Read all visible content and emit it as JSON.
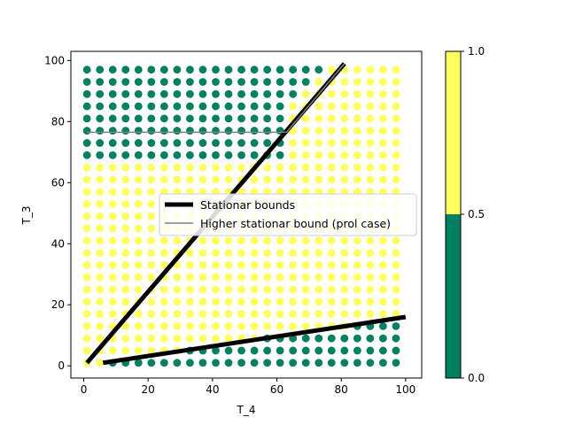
{
  "chart_data": {
    "type": "scatter",
    "title": "",
    "xlabel": "T_4",
    "ylabel": "T_3",
    "xlim": [
      -4,
      105
    ],
    "ylim": [
      -4,
      103
    ],
    "x_ticks": [
      0,
      20,
      40,
      60,
      80,
      100
    ],
    "y_ticks": [
      0,
      20,
      40,
      60,
      80,
      100
    ],
    "x_tick_labels": [
      "0",
      "20",
      "40",
      "60",
      "80",
      "100"
    ],
    "y_tick_labels": [
      "0",
      "20",
      "40",
      "60",
      "80",
      "100"
    ],
    "grid": false,
    "grid_points": {
      "x_start": 1,
      "x_step": 4,
      "x_count": 25,
      "y_start": 1,
      "y_step": 4,
      "y_count": 25
    },
    "point_classes": {
      "class_0_color": "#008060",
      "class_1_color": "#ffff5f",
      "rule": "class 0 = green region at top-left (above the higher stationar bound) and bottom-right (below the lower stationar bound); class 1 = yellow elsewhere"
    },
    "lines": [
      {
        "name": "Stationar bounds",
        "color": "#000000",
        "width": "thick",
        "segments": [
          [
            [
              1,
              1
            ],
            [
              81,
              99
            ]
          ],
          [
            [
              6,
              1
            ],
            [
              100,
              16
            ]
          ]
        ]
      },
      {
        "name": "Higher stationar bound (prol case)",
        "color": "#808080",
        "width": "thin",
        "segments": [
          [
            [
              1,
              76.5
            ],
            [
              63,
              76.5
            ]
          ],
          [
            [
              63,
              76.5
            ],
            [
              81,
              99
            ]
          ]
        ]
      }
    ],
    "legend": {
      "placement": "center-right",
      "entries": [
        "Stationar bounds",
        "Higher stationar bound (prol case)"
      ]
    },
    "colorbar": {
      "ticks": [
        "0.0",
        "0.5",
        "1.0"
      ],
      "segments": [
        {
          "from": 0.0,
          "to": 0.5,
          "color": "#008060"
        },
        {
          "from": 0.5,
          "to": 1.0,
          "color": "#ffff5f"
        }
      ]
    }
  }
}
